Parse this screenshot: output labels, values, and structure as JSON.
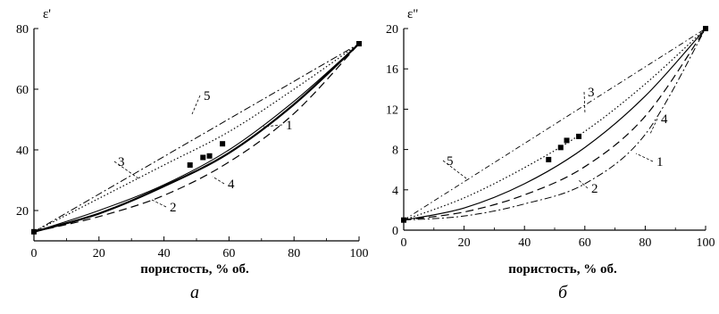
{
  "chart_data": [
    {
      "type": "line",
      "panel_label": "а",
      "ylabel": "ε'",
      "xlabel": "пористость, % об.",
      "xlim": [
        0,
        100
      ],
      "ylim": [
        10,
        80
      ],
      "xticks": [
        "0",
        "20",
        "40",
        "60",
        "80",
        "100"
      ],
      "yticks": [
        "20",
        "40",
        "60",
        "80"
      ],
      "series": [
        {
          "label": "1",
          "style": "solid-thick",
          "x": [
            0,
            20,
            40,
            60,
            80,
            100
          ],
          "y": [
            13,
            19,
            28,
            39,
            55,
            75
          ]
        },
        {
          "label": "2",
          "style": "solid-thin",
          "x": [
            0,
            20,
            40,
            60,
            80,
            100
          ],
          "y": [
            13,
            20,
            28.5,
            40,
            56,
            75
          ]
        },
        {
          "label": "3",
          "style": "dotted",
          "x": [
            0,
            20,
            40,
            60,
            80,
            100
          ],
          "y": [
            13,
            24,
            35,
            46,
            60,
            75
          ]
        },
        {
          "label": "4",
          "style": "dashed",
          "x": [
            0,
            20,
            40,
            60,
            80,
            100
          ],
          "y": [
            13,
            18,
            25,
            36,
            52,
            75
          ]
        },
        {
          "label": "5",
          "style": "dash-dot",
          "x": [
            0,
            100
          ],
          "y": [
            13,
            75
          ]
        }
      ],
      "points": {
        "x": [
          0,
          48,
          52,
          54,
          58,
          100
        ],
        "y": [
          13,
          35,
          37.5,
          38,
          42,
          75
        ]
      }
    },
    {
      "type": "line",
      "panel_label": "б",
      "ylabel": "ε\"",
      "xlabel": "пористость, % об.",
      "xlim": [
        0,
        100
      ],
      "ylim": [
        0,
        20
      ],
      "xticks": [
        "0",
        "20",
        "40",
        "60",
        "80",
        "100"
      ],
      "yticks": [
        "0",
        "4",
        "8",
        "12",
        "16",
        "20"
      ],
      "series": [
        {
          "label": "1",
          "style": "dash-dot",
          "x": [
            0,
            20,
            40,
            60,
            80,
            100
          ],
          "y": [
            1,
            1.4,
            2.6,
            4.6,
            9.5,
            20
          ]
        },
        {
          "label": "2",
          "style": "solid",
          "x": [
            0,
            20,
            40,
            60,
            80,
            100
          ],
          "y": [
            1,
            2.2,
            4.6,
            8.2,
            13.3,
            20
          ]
        },
        {
          "label": "3",
          "style": "dotted",
          "x": [
            0,
            20,
            40,
            60,
            80,
            100
          ],
          "y": [
            1,
            3.2,
            6.2,
            9.8,
            14.5,
            20
          ]
        },
        {
          "label": "4",
          "style": "dashed",
          "x": [
            0,
            20,
            40,
            60,
            80,
            100
          ],
          "y": [
            1,
            1.8,
            3.5,
            6.3,
            11.3,
            20
          ]
        },
        {
          "label": "5",
          "style": "dash-dot-thin",
          "x": [
            0,
            100
          ],
          "y": [
            1,
            20
          ]
        }
      ],
      "points": {
        "x": [
          0,
          48,
          52,
          54,
          58,
          100
        ],
        "y": [
          1,
          7,
          8.2,
          8.9,
          9.3,
          20
        ]
      }
    }
  ]
}
